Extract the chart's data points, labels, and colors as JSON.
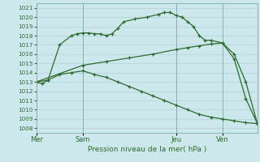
{
  "title": "Pression niveau de la mer( hPa )",
  "bg_color": "#cce8ec",
  "grid_color": "#aacccc",
  "line_color": "#2d6a2d",
  "ylim": [
    1007.5,
    1021.5
  ],
  "yticks": [
    1008,
    1009,
    1010,
    1011,
    1012,
    1013,
    1014,
    1015,
    1016,
    1017,
    1018,
    1019,
    1020,
    1021
  ],
  "day_labels": [
    "Mer",
    "Sam",
    "Jeu",
    "Ven"
  ],
  "day_positions": [
    0,
    8,
    24,
    32
  ],
  "xlim": [
    0,
    38
  ],
  "line1_x": [
    0,
    1,
    2,
    4,
    6,
    7,
    8,
    9,
    10,
    11,
    12,
    13,
    14,
    15,
    17,
    19,
    21,
    22,
    23,
    24,
    25,
    26,
    27,
    28,
    29,
    30,
    32,
    34,
    36,
    38
  ],
  "line1_y": [
    1013.0,
    1012.8,
    1013.2,
    1017.0,
    1018.0,
    1018.2,
    1018.3,
    1018.3,
    1018.2,
    1018.2,
    1018.0,
    1018.2,
    1018.8,
    1019.5,
    1019.8,
    1020.0,
    1020.3,
    1020.5,
    1020.5,
    1020.2,
    1020.0,
    1019.5,
    1019.0,
    1018.0,
    1017.5,
    1017.5,
    1017.2,
    1015.5,
    1011.2,
    1008.5
  ],
  "line2_x": [
    0,
    8,
    12,
    16,
    20,
    24,
    26,
    28,
    30,
    32,
    34,
    36,
    38
  ],
  "line2_y": [
    1013.0,
    1014.8,
    1015.2,
    1015.6,
    1016.0,
    1016.5,
    1016.7,
    1016.9,
    1017.1,
    1017.2,
    1016.0,
    1013.0,
    1008.5
  ],
  "line3_x": [
    0,
    2,
    4,
    6,
    8,
    10,
    12,
    14,
    16,
    18,
    20,
    22,
    24,
    26,
    28,
    30,
    32,
    34,
    36,
    38
  ],
  "line3_y": [
    1013.0,
    1013.2,
    1013.8,
    1014.0,
    1014.2,
    1013.8,
    1013.5,
    1013.0,
    1012.5,
    1012.0,
    1011.5,
    1011.0,
    1010.5,
    1010.0,
    1009.5,
    1009.2,
    1009.0,
    1008.8,
    1008.6,
    1008.5
  ]
}
